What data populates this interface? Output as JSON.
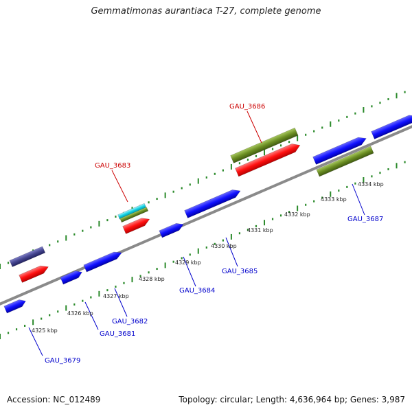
{
  "title": "Gemmatimonas aurantiaca T-27, complete genome",
  "footer": {
    "accession": "Accession: NC_012489",
    "summary": "Topology: circular; Length: 4,636,964 bp; Genes: 3,987"
  },
  "colors": {
    "forward_gene": "#ff1a1a",
    "reverse_gene": "#1a1aff",
    "rna_olive": "#6b8e23",
    "cyan_feature": "#00c8d8",
    "navy_feature": "#3a3a8c",
    "backbone": "#8a8a8a",
    "tick": "#2a8a2a",
    "label_forward": "#cc0000",
    "label_reverse": "#0000cc"
  },
  "scale_labels": [
    "4325 kbp",
    "4326 kbp",
    "4327 kbp",
    "4328 kbp",
    "4329 kbp",
    "4330 kbp",
    "4331 kbp",
    "4332 kbp",
    "4333 kbp",
    "4334 kbp"
  ],
  "gene_labels": [
    "GAU_3683",
    "GAU_3686",
    "GAU_3687",
    "GAU_3685",
    "GAU_3684",
    "GAU_3682",
    "GAU_3681",
    "GAU_3679"
  ]
}
